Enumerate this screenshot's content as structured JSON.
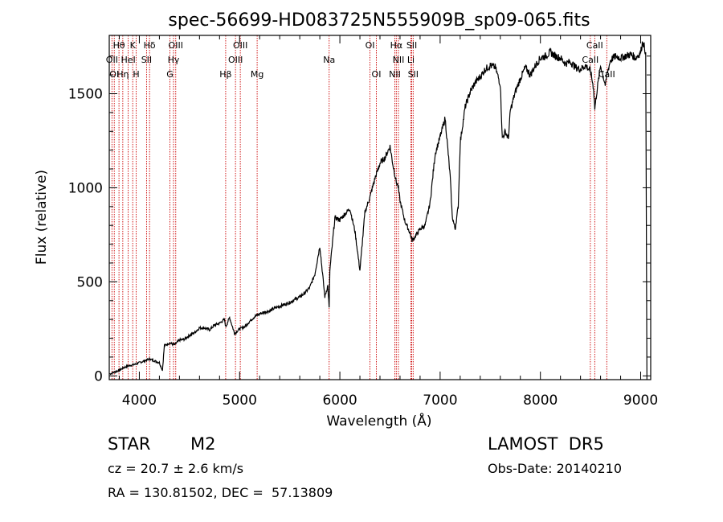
{
  "chart_data": {
    "type": "line",
    "title": "spec-56699-HD083725N555909B_sp09-065.fits",
    "xlabel": "Wavelength (Å)",
    "ylabel": "Flux (relative)",
    "xlim": [
      3700,
      9100
    ],
    "ylim": [
      -20,
      1810
    ],
    "xticks": [
      4000,
      5000,
      6000,
      7000,
      8000,
      9000
    ],
    "yticks": [
      0,
      500,
      1000,
      1500
    ],
    "grid": false,
    "line_color": "#000000",
    "marker_color": "#cc0000",
    "series": [
      {
        "x": [
          3705,
          3750,
          3800,
          3850,
          3900,
          3950,
          4000,
          4050,
          4100,
          4150,
          4200,
          4230,
          4250,
          4300,
          4350,
          4400,
          4450,
          4500,
          4550,
          4600,
          4650,
          4700,
          4750,
          4800,
          4850,
          4861,
          4900,
          4950,
          5000,
          5050,
          5100,
          5150,
          5200,
          5250,
          5300,
          5350,
          5400,
          5450,
          5500,
          5550,
          5600,
          5650,
          5700,
          5750,
          5800,
          5850,
          5880,
          5893,
          5900,
          5950,
          6000,
          6050,
          6100,
          6150,
          6200,
          6250,
          6300,
          6350,
          6400,
          6450,
          6500,
          6530,
          6563,
          6580,
          6600,
          6650,
          6700,
          6720,
          6750,
          6800,
          6850,
          6900,
          6950,
          7000,
          7050,
          7100,
          7120,
          7150,
          7180,
          7200,
          7250,
          7300,
          7350,
          7400,
          7450,
          7500,
          7550,
          7600,
          7620,
          7650,
          7680,
          7700,
          7750,
          7800,
          7850,
          7900,
          7950,
          8000,
          8050,
          8100,
          8150,
          8200,
          8250,
          8300,
          8350,
          8400,
          8450,
          8500,
          8530,
          8542,
          8560,
          8600,
          8650,
          8662,
          8700,
          8750,
          8800,
          8850,
          8900,
          8950,
          9000,
          9020,
          9050
        ],
        "y": [
          10,
          20,
          30,
          45,
          55,
          60,
          70,
          80,
          90,
          80,
          70,
          30,
          160,
          175,
          165,
          190,
          195,
          215,
          230,
          255,
          255,
          245,
          270,
          280,
          300,
          260,
          310,
          225,
          250,
          260,
          290,
          315,
          330,
          340,
          345,
          360,
          370,
          380,
          390,
          405,
          420,
          440,
          470,
          540,
          690,
          420,
          480,
          360,
          560,
          840,
          830,
          860,
          890,
          770,
          560,
          870,
          950,
          1050,
          1130,
          1160,
          1220,
          1120,
          1030,
          1010,
          930,
          820,
          760,
          720,
          740,
          780,
          800,
          920,
          1180,
          1270,
          1370,
          1060,
          850,
          780,
          900,
          1240,
          1430,
          1510,
          1560,
          1590,
          1630,
          1650,
          1640,
          1550,
          1260,
          1300,
          1260,
          1410,
          1510,
          1580,
          1640,
          1600,
          1650,
          1690,
          1700,
          1720,
          1700,
          1690,
          1660,
          1670,
          1640,
          1630,
          1650,
          1620,
          1530,
          1420,
          1500,
          1650,
          1540,
          1600,
          1680,
          1700,
          1690,
          1700,
          1710,
          1690,
          1720,
          1780,
          1720
        ]
      }
    ],
    "lines": [
      {
        "label": "Hθ",
        "wl": 3797,
        "row": 0
      },
      {
        "label": "K",
        "wl": 3934,
        "row": 0
      },
      {
        "label": "Hδ",
        "wl": 4102,
        "row": 0
      },
      {
        "label": "OIII",
        "wl": 4363,
        "row": 0
      },
      {
        "label": "OIII",
        "wl": 5007,
        "row": 0
      },
      {
        "label": "OI",
        "wl": 6300,
        "row": 0
      },
      {
        "label": "Hα",
        "wl": 6563,
        "row": 0
      },
      {
        "label": "SII",
        "wl": 6717,
        "row": 0
      },
      {
        "label": "CaII",
        "wl": 8542,
        "row": 0
      },
      {
        "label": "OII",
        "wl": 3727,
        "row": 1
      },
      {
        "label": "HeI",
        "wl": 3889,
        "row": 1
      },
      {
        "label": "SII",
        "wl": 4072,
        "row": 1
      },
      {
        "label": "Hγ",
        "wl": 4341,
        "row": 1
      },
      {
        "label": "OIII",
        "wl": 4959,
        "row": 1
      },
      {
        "label": "Na",
        "wl": 5893,
        "row": 1
      },
      {
        "label": "NII",
        "wl": 6584,
        "row": 1
      },
      {
        "label": "Li",
        "wl": 6708,
        "row": 1
      },
      {
        "label": "CaII",
        "wl": 8498,
        "row": 1
      },
      {
        "label": "OI",
        "wl": 3750,
        "row": 2
      },
      {
        "label": "Hη",
        "wl": 3835,
        "row": 2
      },
      {
        "label": "H",
        "wl": 3969,
        "row": 2
      },
      {
        "label": "G",
        "wl": 4305,
        "row": 2
      },
      {
        "label": "Hβ",
        "wl": 4861,
        "row": 2
      },
      {
        "label": "Mg",
        "wl": 5175,
        "row": 2
      },
      {
        "label": "OI",
        "wl": 6364,
        "row": 2
      },
      {
        "label": "NII",
        "wl": 6548,
        "row": 2
      },
      {
        "label": "SII",
        "wl": 6731,
        "row": 2
      },
      {
        "label": "CaII",
        "wl": 8662,
        "row": 2
      }
    ]
  },
  "info": {
    "object_class": "STAR",
    "subclass": "M2",
    "survey": "LAMOST  DR5",
    "cz": "cz = 20.7 ± 2.6 km/s",
    "obs_date": "Obs-Date: 20140210",
    "radec": "RA = 130.81502, DEC =  57.13809"
  }
}
